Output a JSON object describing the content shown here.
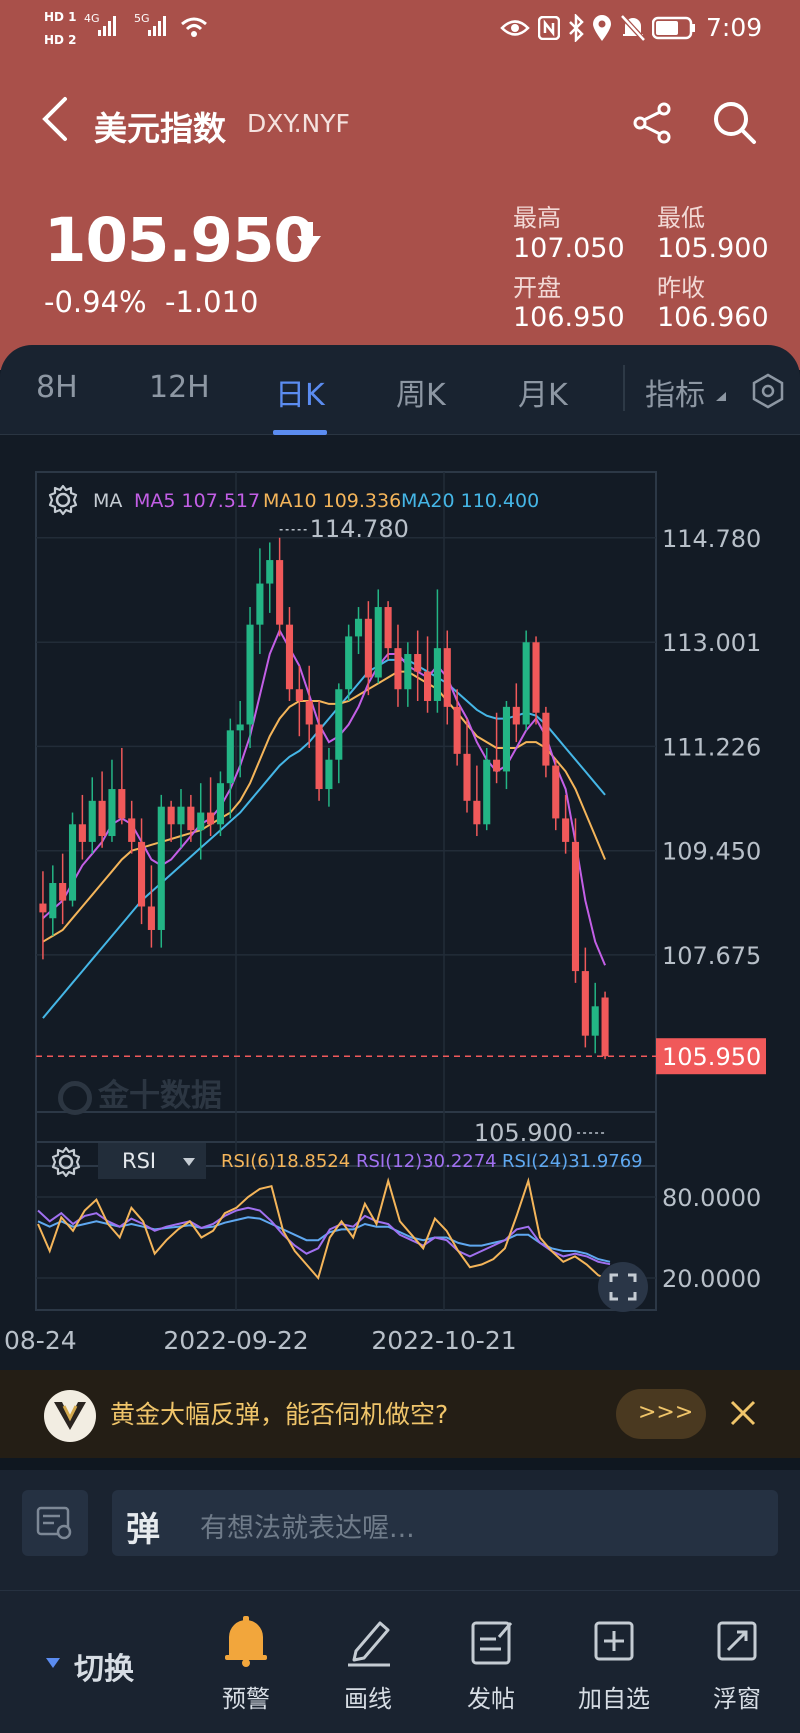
{
  "status": {
    "left_labels": [
      "HD 1",
      "HD 2",
      "4G",
      "5G"
    ],
    "time": "7:09"
  },
  "header": {
    "title": "美元指数",
    "symbol": "DXY.NYF",
    "price": "105.950",
    "change": "-0.94%  -1.010",
    "high_label": "最高",
    "high_value": "107.050",
    "low_label": "最低",
    "low_value": "105.900",
    "open_label": "开盘",
    "open_value": "106.950",
    "prev_close_label": "昨收",
    "prev_close_value": "106.960"
  },
  "tabs": [
    {
      "label": "8H"
    },
    {
      "label": "12H"
    },
    {
      "label": "日K",
      "active": true
    },
    {
      "label": "周K"
    },
    {
      "label": "月K"
    },
    {
      "label": "指标"
    }
  ],
  "ma": {
    "label": "MA",
    "ma5": "MA5 107.517",
    "ma10": "MA10 109.336",
    "ma20": "MA20 110.400"
  },
  "rsi": {
    "selector": "RSI",
    "rsi6": "RSI(6)18.8524",
    "rsi12": "RSI(12)30.2274",
    "rsi24": "RSI(24)31.9769",
    "ticks": [
      "80.0000",
      "20.0000"
    ]
  },
  "watermark": "金十数据",
  "colors": {
    "header_bg": "#a9504a",
    "up": "#23b585",
    "down": "#f0595a",
    "ma5": "#c35fe6",
    "ma10": "#f4b55a",
    "ma20": "#45b6e6",
    "accent": "#5b8cf0"
  },
  "chart_data": {
    "type": "candlestick",
    "ylim": [
      105.0,
      115.9
    ],
    "y_ticks": [
      "114.780",
      "113.001",
      "111.226",
      "109.450",
      "107.675"
    ],
    "x_ticks": [
      "08-24",
      "2022-09-22",
      "2022-10-21"
    ],
    "max_label": "114.780",
    "min_label": "105.900",
    "current_price_label": "105.950",
    "candles": [
      {
        "o": 108.55,
        "h": 109.1,
        "l": 107.6,
        "c": 108.4
      },
      {
        "o": 108.3,
        "h": 109.2,
        "l": 108.0,
        "c": 108.9
      },
      {
        "o": 108.9,
        "h": 109.4,
        "l": 108.2,
        "c": 108.6
      },
      {
        "o": 108.6,
        "h": 110.1,
        "l": 108.5,
        "c": 109.9
      },
      {
        "o": 109.9,
        "h": 110.4,
        "l": 109.3,
        "c": 109.6
      },
      {
        "o": 109.6,
        "h": 110.7,
        "l": 109.4,
        "c": 110.3
      },
      {
        "o": 110.3,
        "h": 110.8,
        "l": 109.5,
        "c": 109.7
      },
      {
        "o": 109.7,
        "h": 111.0,
        "l": 109.6,
        "c": 110.5
      },
      {
        "o": 110.5,
        "h": 111.2,
        "l": 109.9,
        "c": 110.0
      },
      {
        "o": 110.0,
        "h": 110.3,
        "l": 109.4,
        "c": 109.6
      },
      {
        "o": 109.6,
        "h": 110.0,
        "l": 108.2,
        "c": 108.5
      },
      {
        "o": 108.5,
        "h": 109.2,
        "l": 107.8,
        "c": 108.1
      },
      {
        "o": 108.1,
        "h": 110.4,
        "l": 107.8,
        "c": 110.2
      },
      {
        "o": 110.2,
        "h": 110.3,
        "l": 109.6,
        "c": 109.9
      },
      {
        "o": 109.9,
        "h": 110.5,
        "l": 109.5,
        "c": 110.2
      },
      {
        "o": 110.2,
        "h": 110.4,
        "l": 109.6,
        "c": 109.8
      },
      {
        "o": 109.8,
        "h": 110.6,
        "l": 109.3,
        "c": 110.1
      },
      {
        "o": 110.1,
        "h": 110.7,
        "l": 109.7,
        "c": 109.9
      },
      {
        "o": 109.9,
        "h": 110.8,
        "l": 109.7,
        "c": 110.6
      },
      {
        "o": 110.6,
        "h": 111.7,
        "l": 110.0,
        "c": 111.5
      },
      {
        "o": 111.5,
        "h": 112.0,
        "l": 110.7,
        "c": 111.6
      },
      {
        "o": 111.6,
        "h": 113.6,
        "l": 111.2,
        "c": 113.3
      },
      {
        "o": 113.3,
        "h": 114.6,
        "l": 112.8,
        "c": 114.0
      },
      {
        "o": 114.0,
        "h": 114.7,
        "l": 113.5,
        "c": 114.4
      },
      {
        "o": 114.4,
        "h": 114.78,
        "l": 113.1,
        "c": 113.3
      },
      {
        "o": 113.3,
        "h": 113.6,
        "l": 112.0,
        "c": 112.2
      },
      {
        "o": 112.2,
        "h": 112.6,
        "l": 111.4,
        "c": 112.0
      },
      {
        "o": 112.0,
        "h": 112.6,
        "l": 111.2,
        "c": 111.6
      },
      {
        "o": 111.6,
        "h": 112.0,
        "l": 110.3,
        "c": 110.5
      },
      {
        "o": 110.5,
        "h": 111.2,
        "l": 110.2,
        "c": 111.0
      },
      {
        "o": 111.0,
        "h": 112.3,
        "l": 110.6,
        "c": 112.2
      },
      {
        "o": 112.2,
        "h": 113.3,
        "l": 112.0,
        "c": 113.1
      },
      {
        "o": 113.1,
        "h": 113.6,
        "l": 112.8,
        "c": 113.4
      },
      {
        "o": 113.4,
        "h": 113.7,
        "l": 112.1,
        "c": 112.4
      },
      {
        "o": 112.4,
        "h": 113.9,
        "l": 112.3,
        "c": 113.6
      },
      {
        "o": 113.6,
        "h": 113.7,
        "l": 112.7,
        "c": 112.9
      },
      {
        "o": 112.9,
        "h": 113.3,
        "l": 111.9,
        "c": 112.2
      },
      {
        "o": 112.2,
        "h": 113.0,
        "l": 111.9,
        "c": 112.8
      },
      {
        "o": 112.8,
        "h": 113.2,
        "l": 112.0,
        "c": 112.5
      },
      {
        "o": 112.5,
        "h": 113.1,
        "l": 111.8,
        "c": 112.0
      },
      {
        "o": 112.0,
        "h": 113.9,
        "l": 111.8,
        "c": 112.9
      },
      {
        "o": 112.9,
        "h": 113.2,
        "l": 111.6,
        "c": 111.9
      },
      {
        "o": 111.9,
        "h": 112.2,
        "l": 110.9,
        "c": 111.1
      },
      {
        "o": 111.1,
        "h": 111.7,
        "l": 110.1,
        "c": 110.3
      },
      {
        "o": 110.3,
        "h": 110.9,
        "l": 109.7,
        "c": 109.9
      },
      {
        "o": 109.9,
        "h": 111.2,
        "l": 109.8,
        "c": 111.0
      },
      {
        "o": 111.0,
        "h": 111.8,
        "l": 110.6,
        "c": 110.8
      },
      {
        "o": 110.8,
        "h": 112.0,
        "l": 110.5,
        "c": 111.9
      },
      {
        "o": 111.9,
        "h": 112.3,
        "l": 111.3,
        "c": 111.6
      },
      {
        "o": 111.6,
        "h": 113.2,
        "l": 111.5,
        "c": 113.0
      },
      {
        "o": 113.0,
        "h": 113.1,
        "l": 111.6,
        "c": 111.8
      },
      {
        "o": 111.8,
        "h": 111.9,
        "l": 110.7,
        "c": 110.9
      },
      {
        "o": 110.9,
        "h": 111.0,
        "l": 109.8,
        "c": 110.0
      },
      {
        "o": 110.0,
        "h": 110.4,
        "l": 109.4,
        "c": 109.6
      },
      {
        "o": 109.6,
        "h": 110.0,
        "l": 107.2,
        "c": 107.4
      },
      {
        "o": 107.4,
        "h": 107.8,
        "l": 106.1,
        "c": 106.3
      },
      {
        "o": 106.3,
        "h": 107.2,
        "l": 106.0,
        "c": 106.8
      },
      {
        "o": 106.95,
        "h": 107.05,
        "l": 105.9,
        "c": 105.95
      }
    ],
    "ma5": [
      108.3,
      108.45,
      108.6,
      108.9,
      109.2,
      109.4,
      109.6,
      109.9,
      110.0,
      109.9,
      109.6,
      109.3,
      109.2,
      109.3,
      109.5,
      109.7,
      109.9,
      110.0,
      110.2,
      110.5,
      110.9,
      111.4,
      112.1,
      112.8,
      113.2,
      112.9,
      112.6,
      112.1,
      111.6,
      111.3,
      111.4,
      111.6,
      111.9,
      112.3,
      112.6,
      112.8,
      112.8,
      112.6,
      112.5,
      112.4,
      112.6,
      112.4,
      112.0,
      111.7,
      111.3,
      111.0,
      110.8,
      110.9,
      111.2,
      111.5,
      111.7,
      111.4,
      110.9,
      110.5,
      109.6,
      108.6,
      107.9,
      107.5
    ],
    "ma10": [
      107.9,
      108.0,
      108.1,
      108.3,
      108.5,
      108.7,
      108.9,
      109.1,
      109.3,
      109.45,
      109.5,
      109.55,
      109.6,
      109.65,
      109.7,
      109.75,
      109.8,
      109.9,
      110.0,
      110.1,
      110.3,
      110.6,
      111.0,
      111.4,
      111.7,
      111.9,
      112.0,
      112.0,
      112.0,
      111.95,
      111.95,
      112.0,
      112.1,
      112.2,
      112.3,
      112.4,
      112.5,
      112.5,
      112.4,
      112.3,
      112.2,
      112.0,
      111.8,
      111.6,
      111.4,
      111.3,
      111.2,
      111.2,
      111.2,
      111.3,
      111.3,
      111.2,
      111.0,
      110.8,
      110.5,
      110.1,
      109.7,
      109.3
    ],
    "ma20": [
      106.6,
      106.8,
      107.0,
      107.2,
      107.4,
      107.6,
      107.8,
      108.0,
      108.2,
      108.4,
      108.6,
      108.75,
      108.9,
      109.05,
      109.2,
      109.35,
      109.5,
      109.65,
      109.8,
      109.95,
      110.1,
      110.3,
      110.5,
      110.7,
      110.9,
      111.05,
      111.15,
      111.3,
      111.5,
      111.7,
      111.9,
      112.1,
      112.3,
      112.5,
      112.6,
      112.7,
      112.7,
      112.7,
      112.6,
      112.5,
      112.4,
      112.3,
      112.15,
      112.0,
      111.85,
      111.75,
      111.7,
      111.7,
      111.75,
      111.8,
      111.75,
      111.6,
      111.4,
      111.2,
      111.0,
      110.8,
      110.6,
      110.4
    ],
    "rsi6": [
      60,
      40,
      65,
      55,
      70,
      78,
      60,
      50,
      72,
      62,
      38,
      48,
      56,
      62,
      50,
      55,
      68,
      72,
      80,
      86,
      88,
      55,
      40,
      30,
      20,
      50,
      62,
      50,
      75,
      60,
      92,
      62,
      52,
      42,
      64,
      55,
      40,
      28,
      30,
      34,
      42,
      66,
      92,
      50,
      40,
      32,
      36,
      30,
      22,
      18.85
    ],
    "rsi12": [
      70,
      62,
      68,
      60,
      66,
      68,
      62,
      58,
      64,
      60,
      55,
      58,
      60,
      62,
      57,
      60,
      66,
      70,
      72,
      70,
      62,
      52,
      44,
      38,
      42,
      56,
      60,
      58,
      66,
      62,
      60,
      52,
      48,
      44,
      50,
      48,
      40,
      36,
      40,
      44,
      48,
      56,
      58,
      46,
      40,
      36,
      38,
      36,
      32,
      30.23
    ],
    "rsi24": [
      62,
      58,
      62,
      58,
      60,
      62,
      60,
      58,
      60,
      58,
      56,
      57,
      58,
      59,
      57,
      58,
      61,
      63,
      65,
      64,
      60,
      56,
      52,
      48,
      48,
      54,
      56,
      56,
      60,
      58,
      58,
      54,
      50,
      48,
      50,
      50,
      46,
      44,
      44,
      46,
      48,
      52,
      52,
      46,
      42,
      40,
      40,
      38,
      34,
      31.98
    ]
  },
  "banner": {
    "text": "黄金大幅反弹，能否伺机做空?",
    "more": ">>>"
  },
  "comment": {
    "badge": "弹",
    "placeholder": "有想法就表达喔..."
  },
  "bottom": {
    "switch_label": "切换",
    "items": [
      {
        "label": "预警",
        "icon": "bell-icon"
      },
      {
        "label": "画线",
        "icon": "pen-icon"
      },
      {
        "label": "发帖",
        "icon": "post-icon"
      },
      {
        "label": "加自选",
        "icon": "add-watchlist-icon"
      },
      {
        "label": "浮窗",
        "icon": "float-window-icon"
      }
    ]
  }
}
